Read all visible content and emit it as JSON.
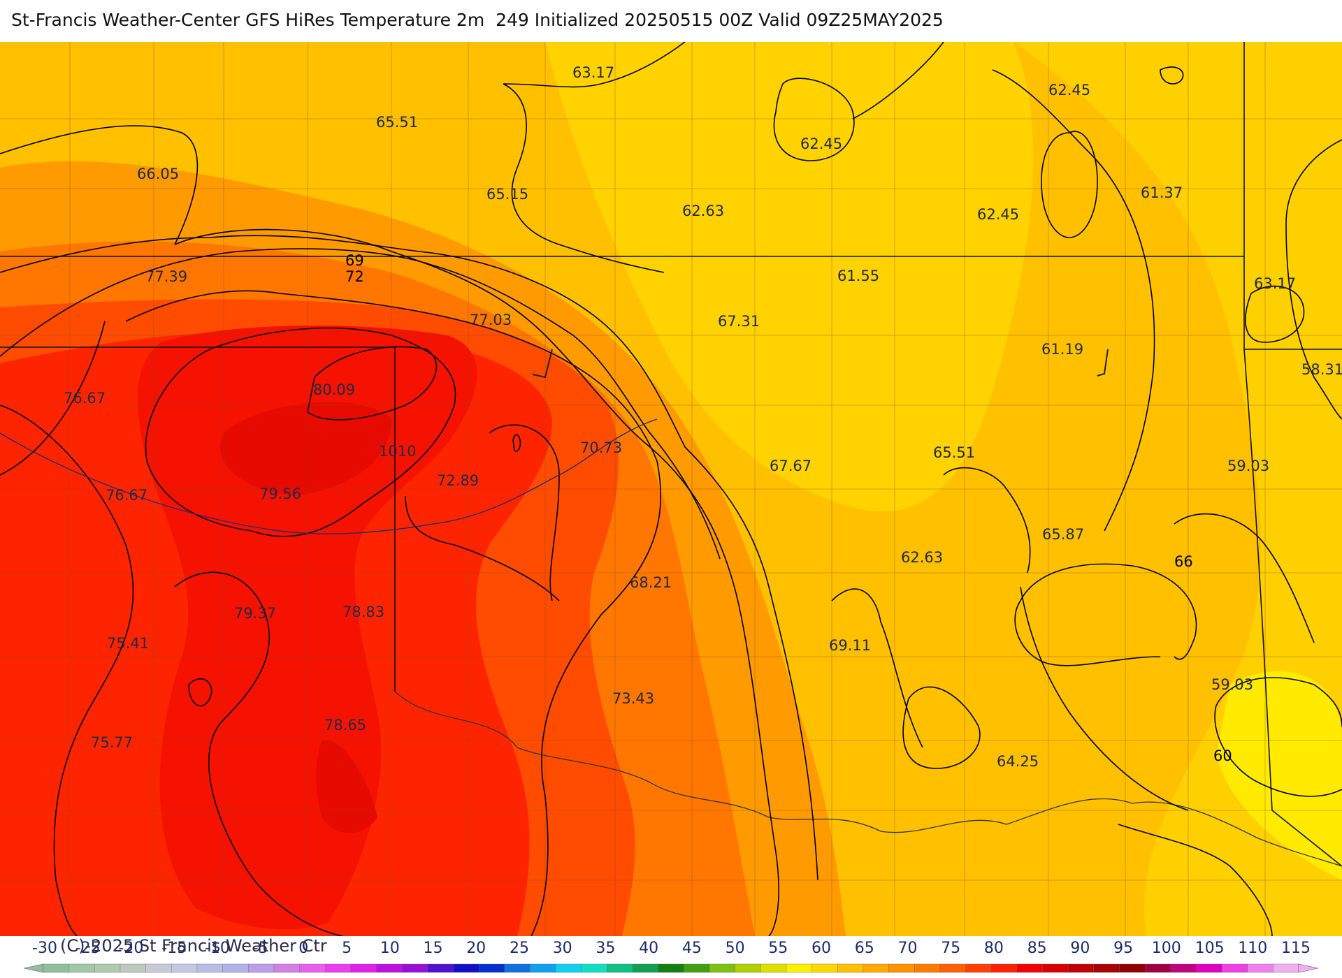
{
  "title": "St-Francis Weather-Center GFS HiRes Temperature 2m  249 Initialized 20250515 00Z Valid 09Z25MAY2025",
  "copyright": "(C)-2025 St Francis Weather Ctr",
  "temperature_labels": [
    "63.17",
    "62.45",
    "65.51",
    "62.45",
    "66.05",
    "65.15",
    "62.63",
    "62.45",
    "61.37",
    "69",
    "72",
    "77.39",
    "61.55",
    "63.17",
    "77.03",
    "67.31",
    "61.19",
    "58.31",
    "76.67",
    "80.09",
    "1010",
    "70.73",
    "65.51",
    "59.03",
    "67.67",
    "72.89",
    "76.67",
    "79.56",
    "65.87",
    "62.63",
    "66",
    "68.21",
    "79.37",
    "78.83",
    "69.11",
    "75.41",
    "59.03",
    "73.43",
    "78.65",
    "75.77",
    "64.25",
    "60"
  ],
  "legend": {
    "ticks": [
      "-30",
      "-25",
      "-20",
      "-15",
      "-10",
      "-5",
      "0",
      "5",
      "10",
      "15",
      "20",
      "25",
      "30",
      "35",
      "40",
      "45",
      "50",
      "55",
      "60",
      "65",
      "70",
      "75",
      "80",
      "85",
      "90",
      "95",
      "100",
      "105",
      "110",
      "115"
    ],
    "colors": [
      "#8fbf9f",
      "#9fc7a8",
      "#b0c9b0",
      "#bcc8c0",
      "#c8cad8",
      "#c5c8e5",
      "#b8bde8",
      "#b0b3ea",
      "#bb9eea",
      "#d47fe8",
      "#e860ea",
      "#f03cf0",
      "#e020e8",
      "#c010e0",
      "#9810d8",
      "#5010d0",
      "#1010c8",
      "#0030d0",
      "#1070e0",
      "#10a0f0",
      "#10d0f0",
      "#10e0c0",
      "#10c080",
      "#10a050",
      "#108010",
      "#40a010",
      "#80c010",
      "#b0d000",
      "#e0e000",
      "#fff000",
      "#ffd700",
      "#ffc000",
      "#ffaa00",
      "#ff9200",
      "#ff7a00",
      "#ff6000",
      "#ff4000",
      "#ff2000",
      "#f00000",
      "#d80000",
      "#c00000",
      "#a80000",
      "#900000",
      "#a00040",
      "#c00080",
      "#e000c0",
      "#f040e0",
      "#f080f0",
      "#f0b0f0"
    ]
  },
  "colors": {
    "title": "#111111",
    "label": "#222a44",
    "contour": "#000000"
  }
}
